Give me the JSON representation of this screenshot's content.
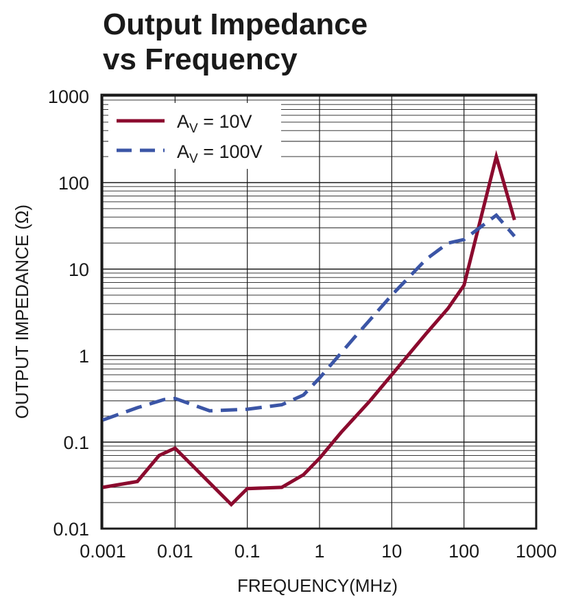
{
  "chart_data": {
    "type": "line",
    "title_line1": "Output Impedance",
    "title_line2": "vs Frequency",
    "xlabel": "FREQUENCY(MHz)",
    "ylabel": "OUTPUT IMPEDANCE (Ω)",
    "x_scale": "log",
    "y_scale": "log",
    "xlim": [
      0.001,
      1000
    ],
    "ylim": [
      0.01,
      1000
    ],
    "grid": true,
    "legend_position": "top-left",
    "x_ticks": [
      "0.001",
      "0.01",
      "0.1",
      "1",
      "10",
      "100",
      "1000"
    ],
    "y_ticks": [
      "0.01",
      "0.1",
      "1",
      "10",
      "100",
      "1000"
    ],
    "series": [
      {
        "name": "A_V = 10V",
        "legend": {
          "main": "A",
          "sub": "V",
          "rest": " = 10V"
        },
        "color": "#8b0a2e",
        "dash": "solid",
        "x": [
          0.001,
          0.003,
          0.006,
          0.01,
          0.06,
          0.1,
          0.3,
          0.6,
          1,
          2,
          5,
          10,
          30,
          60,
          100,
          280,
          500
        ],
        "y": [
          0.03,
          0.035,
          0.07,
          0.085,
          0.019,
          0.029,
          0.03,
          0.042,
          0.065,
          0.13,
          0.3,
          0.6,
          1.8,
          3.5,
          6.5,
          200,
          37
        ]
      },
      {
        "name": "A_V = 100V",
        "legend": {
          "main": "A",
          "sub": "V",
          "rest": " = 100V"
        },
        "color": "#3b55a6",
        "dash": "dashed",
        "x": [
          0.001,
          0.003,
          0.007,
          0.01,
          0.03,
          0.1,
          0.3,
          0.6,
          1,
          3,
          10,
          30,
          60,
          100,
          280,
          500
        ],
        "y": [
          0.18,
          0.25,
          0.31,
          0.32,
          0.23,
          0.24,
          0.27,
          0.35,
          0.55,
          1.6,
          5,
          13,
          20,
          22,
          42,
          24
        ]
      }
    ]
  }
}
